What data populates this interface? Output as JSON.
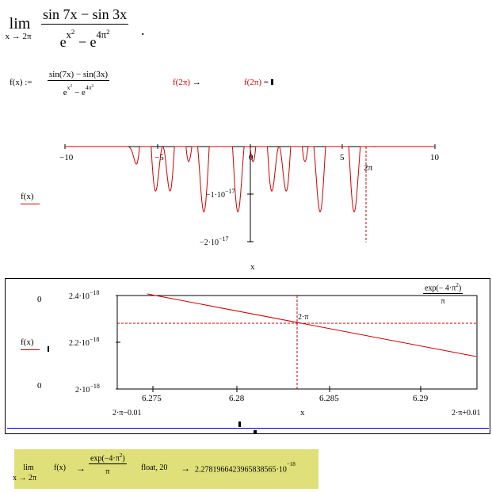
{
  "header": {
    "lim": "lim",
    "lim_sub": "x → 2π",
    "numerator": "sin 7x − sin 3x",
    "den_e1": "e",
    "den_sup1": "x",
    "den_sup1_pow": "2",
    "den_minus": "−",
    "den_e2": "e",
    "den_sup2": "4π",
    "den_sup2_pow": "2",
    "period": "."
  },
  "definition": {
    "lhs": "f(x) :=",
    "numerator": "sin(7x) − sin(3x)",
    "den_e1": "e",
    "den_sup1": "x",
    "den_sup1_pow": "2",
    "den_minus": "−",
    "den_e2": "e",
    "den_sup2": "4π",
    "den_sup2_pow": "2"
  },
  "evaluations": {
    "symbolic": "f(2π)",
    "symbolic_arrow": "→",
    "numeric": "f(2π)",
    "numeric_eq": "="
  },
  "plot1": {
    "trace_label": "f(x)",
    "x_axis_label": "x",
    "x_ticks": [
      "−10",
      "−5",
      "0",
      "5",
      "10"
    ],
    "y_tick_1": "−1·10",
    "y_tick_1_exp": "−17",
    "y_tick_2": "−2·10",
    "y_tick_2_exp": "−17",
    "marker_label": "2π",
    "colors": {
      "trace": "#cc0000",
      "axis": "#000000"
    }
  },
  "plot2": {
    "trace_label": "f(x)",
    "y_top_marker": "0",
    "y_bottom_marker": "0",
    "y_ticks": [
      {
        "mant": "2.4·10",
        "exp": "−18"
      },
      {
        "mant": "2.2·10",
        "exp": "−18"
      },
      {
        "mant": "2·10",
        "exp": "−18"
      }
    ],
    "x_ticks": [
      "6.275",
      "6.28",
      "6.285",
      "6.29"
    ],
    "x_axis_label": "x",
    "x_left_limit": "2·π−0.01",
    "x_right_limit": "2·π+0.01",
    "marker_label": "2·π",
    "legend_num_pre": "exp",
    "legend_num_arg": "− 4·π",
    "legend_num_pow": "2",
    "legend_den": "π",
    "colors": {
      "trace": "#cc0000",
      "frame": "#000000",
      "bottom_line": "#0000cc"
    }
  },
  "result_box": {
    "lim": "lim",
    "lim_sub": "x → 2π",
    "expr": "f(x)",
    "arrow1": "→",
    "frac_num_pre": "exp",
    "frac_num_arg": "−4·π",
    "frac_num_pow": "2",
    "frac_den": "π",
    "keyword": "float, 20",
    "arrow2": "→",
    "value": "2.2781966423965838565·10",
    "value_exp": "−18",
    "colors": {
      "background": "#e0e07a"
    }
  }
}
